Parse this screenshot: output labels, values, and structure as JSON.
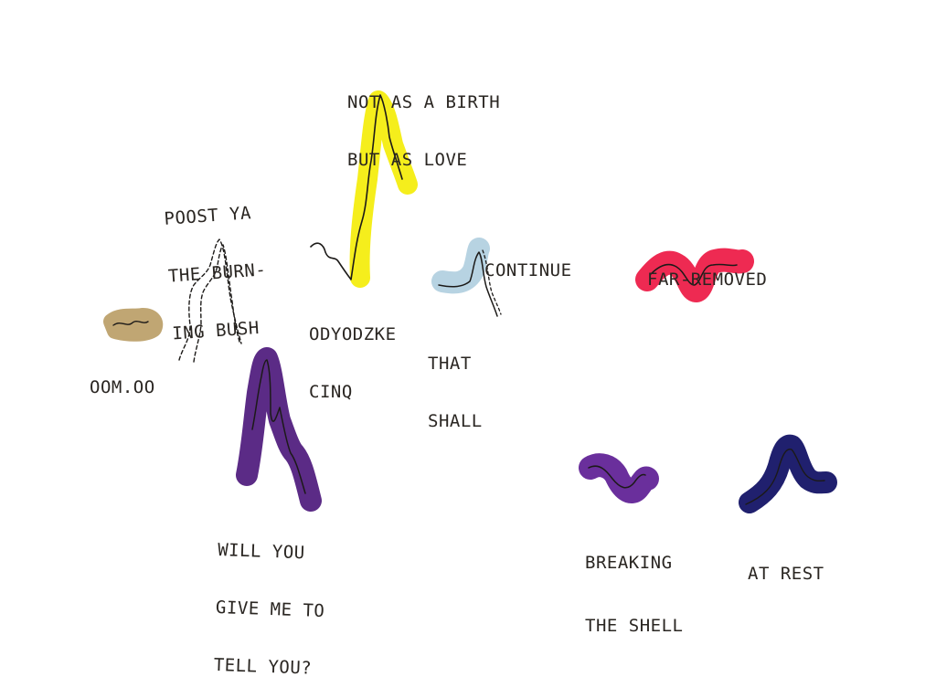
{
  "artwork": {
    "colors": {
      "paper": "#ffffff",
      "ink": "#2a2622",
      "yellow": "#f5ee1c",
      "light_blue": "#b7d3e2",
      "pink_red": "#ee2a52",
      "tan": "#c0a673",
      "purple": "#5b2b86",
      "violet": "#6a2f9c",
      "navy": "#20206e"
    },
    "labels": [
      {
        "id": "not-as-a-birth",
        "lines": [
          "NOT AS A BIRTH",
          "BUT AS LOVE"
        ]
      },
      {
        "id": "poost-ya",
        "lines": [
          "POOST YA",
          "THE BURN-",
          "ING BUSH"
        ]
      },
      {
        "id": "odyodzke",
        "lines": [
          "ODYODZKE",
          "CINQ"
        ]
      },
      {
        "id": "continue",
        "lines": [
          "CONTINUE"
        ]
      },
      {
        "id": "that-shall",
        "lines": [
          "THAT",
          "SHALL"
        ]
      },
      {
        "id": "far-removed",
        "lines": [
          "FAR-REMOVED"
        ]
      },
      {
        "id": "oomoo",
        "lines": [
          "OOM.OO"
        ]
      },
      {
        "id": "will-you",
        "lines": [
          "WILL YOU",
          "GIVE ME TO",
          "TELL YOU?"
        ]
      },
      {
        "id": "breaking-the-shell",
        "lines": [
          "BREAKING",
          "THE SHELL"
        ]
      },
      {
        "id": "at-rest",
        "lines": [
          "AT REST"
        ]
      }
    ]
  }
}
